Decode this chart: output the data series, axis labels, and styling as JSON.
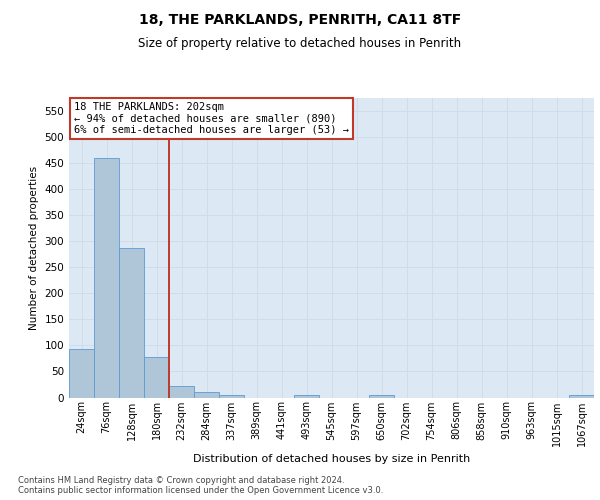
{
  "title1": "18, THE PARKLANDS, PENRITH, CA11 8TF",
  "title2": "Size of property relative to detached houses in Penrith",
  "xlabel": "Distribution of detached houses by size in Penrith",
  "ylabel": "Number of detached properties",
  "bin_labels": [
    "24sqm",
    "76sqm",
    "128sqm",
    "180sqm",
    "232sqm",
    "284sqm",
    "337sqm",
    "389sqm",
    "441sqm",
    "493sqm",
    "545sqm",
    "597sqm",
    "650sqm",
    "702sqm",
    "754sqm",
    "806sqm",
    "858sqm",
    "910sqm",
    "963sqm",
    "1015sqm",
    "1067sqm"
  ],
  "bar_heights": [
    93,
    460,
    287,
    78,
    22,
    10,
    5,
    0,
    0,
    5,
    0,
    0,
    5,
    0,
    0,
    0,
    0,
    0,
    0,
    0,
    5
  ],
  "bar_color": "#aec6d8",
  "bar_edgecolor": "#5b9bd5",
  "vline_x": 3.5,
  "vline_color": "#c0392b",
  "annotation_text": "18 THE PARKLANDS: 202sqm\n← 94% of detached houses are smaller (890)\n6% of semi-detached houses are larger (53) →",
  "annotation_box_color": "#ffffff",
  "annotation_box_edgecolor": "#c0392b",
  "footnote": "Contains HM Land Registry data © Crown copyright and database right 2024.\nContains public sector information licensed under the Open Government Licence v3.0.",
  "ylim": [
    0,
    575
  ],
  "yticks": [
    0,
    50,
    100,
    150,
    200,
    250,
    300,
    350,
    400,
    450,
    500,
    550
  ],
  "grid_color": "#d0dce8",
  "bg_color": "#dce9f5",
  "fig_bg_color": "#ffffff"
}
